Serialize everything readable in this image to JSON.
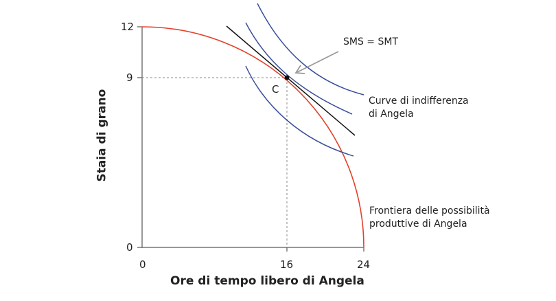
{
  "chart_data": {
    "type": "line",
    "xlabel": "Ore di tempo libero di Angela",
    "ylabel": "Staia di grano",
    "xlim": [
      0,
      24
    ],
    "ylim": [
      0,
      12
    ],
    "x_ticks": [
      "0",
      "16",
      "24"
    ],
    "y_ticks": [
      "0",
      "9",
      "12"
    ],
    "point": {
      "label": "C",
      "x": 16,
      "y": 9
    },
    "annotations": {
      "tangency": "SMS = SMT",
      "indifference_line1": "Curve di indifferenza",
      "indifference_line2": "di Angela",
      "frontier_line1": "Frontiera delle possibilità",
      "frontier_line2": "produttive di Angela"
    },
    "series": [
      {
        "name": "Frontiera delle possibilità produttive",
        "color": "#e2412a",
        "endpoints": [
          [
            0,
            12
          ],
          [
            24,
            0
          ]
        ]
      },
      {
        "name": "Curve di indifferenza",
        "color": "#3a4f9a",
        "count": 3
      },
      {
        "name": "Tangente",
        "color": "#111111"
      }
    ]
  }
}
